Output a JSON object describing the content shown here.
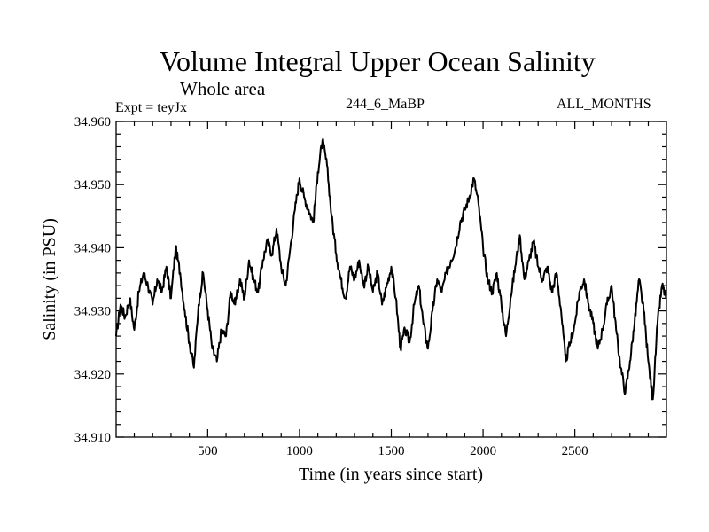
{
  "header": {
    "title": "Volume Integral Upper Ocean Salinity",
    "subtitle": "Whole area",
    "experiment": "Expt = teyJx",
    "run_id": "244_6_MaBP",
    "months": "ALL_MONTHS"
  },
  "chart_data": {
    "type": "line",
    "title": "Volume Integral Upper Ocean Salinity",
    "xlabel": "Time (in years since start)",
    "ylabel": "Salinity (in PSU)",
    "xlim": [
      1,
      2999
    ],
    "ylim": [
      34.91,
      34.96
    ],
    "x_ticks": [
      500,
      1000,
      1500,
      2000,
      2500
    ],
    "x_tick_labels": [
      "500",
      "1000",
      "1500",
      "2000",
      "2500"
    ],
    "y_ticks": [
      34.91,
      34.92,
      34.93,
      34.94,
      34.95,
      34.96
    ],
    "y_tick_labels": [
      "34.910",
      "34.920",
      "34.930",
      "34.940",
      "34.950",
      "34.960"
    ],
    "grid": false,
    "series": [
      {
        "name": "Salinity",
        "x": [
          1,
          25,
          50,
          75,
          100,
          125,
          150,
          175,
          200,
          225,
          250,
          275,
          300,
          325,
          350,
          375,
          400,
          425,
          450,
          475,
          500,
          525,
          550,
          575,
          600,
          625,
          650,
          675,
          700,
          725,
          750,
          775,
          800,
          825,
          850,
          875,
          900,
          925,
          950,
          975,
          1000,
          1025,
          1050,
          1075,
          1100,
          1125,
          1150,
          1175,
          1200,
          1225,
          1250,
          1275,
          1300,
          1325,
          1350,
          1375,
          1400,
          1425,
          1450,
          1475,
          1500,
          1525,
          1550,
          1575,
          1600,
          1625,
          1650,
          1675,
          1700,
          1725,
          1750,
          1775,
          1800,
          1825,
          1850,
          1875,
          1900,
          1925,
          1950,
          1975,
          2000,
          2025,
          2050,
          2075,
          2100,
          2125,
          2150,
          2175,
          2200,
          2225,
          2250,
          2275,
          2300,
          2325,
          2350,
          2375,
          2400,
          2425,
          2450,
          2475,
          2500,
          2525,
          2550,
          2575,
          2600,
          2625,
          2650,
          2675,
          2700,
          2725,
          2750,
          2775,
          2800,
          2825,
          2850,
          2875,
          2900,
          2925,
          2950,
          2975,
          2999
        ],
        "values": [
          34.926,
          34.931,
          34.929,
          34.932,
          34.927,
          34.933,
          34.936,
          34.934,
          34.931,
          34.935,
          34.933,
          34.937,
          34.932,
          34.94,
          34.936,
          34.93,
          34.925,
          34.921,
          34.931,
          34.936,
          34.93,
          34.924,
          34.922,
          34.927,
          34.926,
          34.933,
          34.931,
          34.935,
          34.932,
          34.938,
          34.935,
          34.933,
          34.938,
          34.941,
          34.939,
          34.943,
          34.937,
          34.934,
          34.94,
          34.946,
          34.951,
          34.948,
          34.946,
          34.944,
          34.952,
          34.957,
          34.953,
          34.945,
          34.939,
          34.935,
          34.932,
          34.937,
          34.935,
          34.938,
          34.934,
          34.937,
          34.933,
          34.936,
          34.931,
          34.934,
          34.937,
          34.932,
          34.924,
          34.927,
          34.925,
          34.931,
          34.934,
          34.928,
          34.924,
          34.93,
          34.935,
          34.933,
          34.936,
          34.938,
          34.94,
          34.944,
          34.946,
          34.948,
          34.951,
          34.947,
          34.94,
          34.935,
          34.933,
          34.936,
          34.931,
          34.926,
          34.932,
          34.937,
          34.942,
          34.935,
          34.938,
          34.941,
          34.937,
          34.935,
          34.937,
          34.933,
          34.936,
          34.93,
          34.922,
          34.925,
          34.928,
          34.933,
          34.935,
          34.931,
          34.928,
          34.924,
          34.927,
          34.931,
          34.934,
          34.927,
          34.921,
          34.917,
          34.922,
          34.928,
          34.935,
          34.93,
          34.922,
          34.916,
          34.928,
          34.934,
          34.932
        ]
      }
    ]
  }
}
